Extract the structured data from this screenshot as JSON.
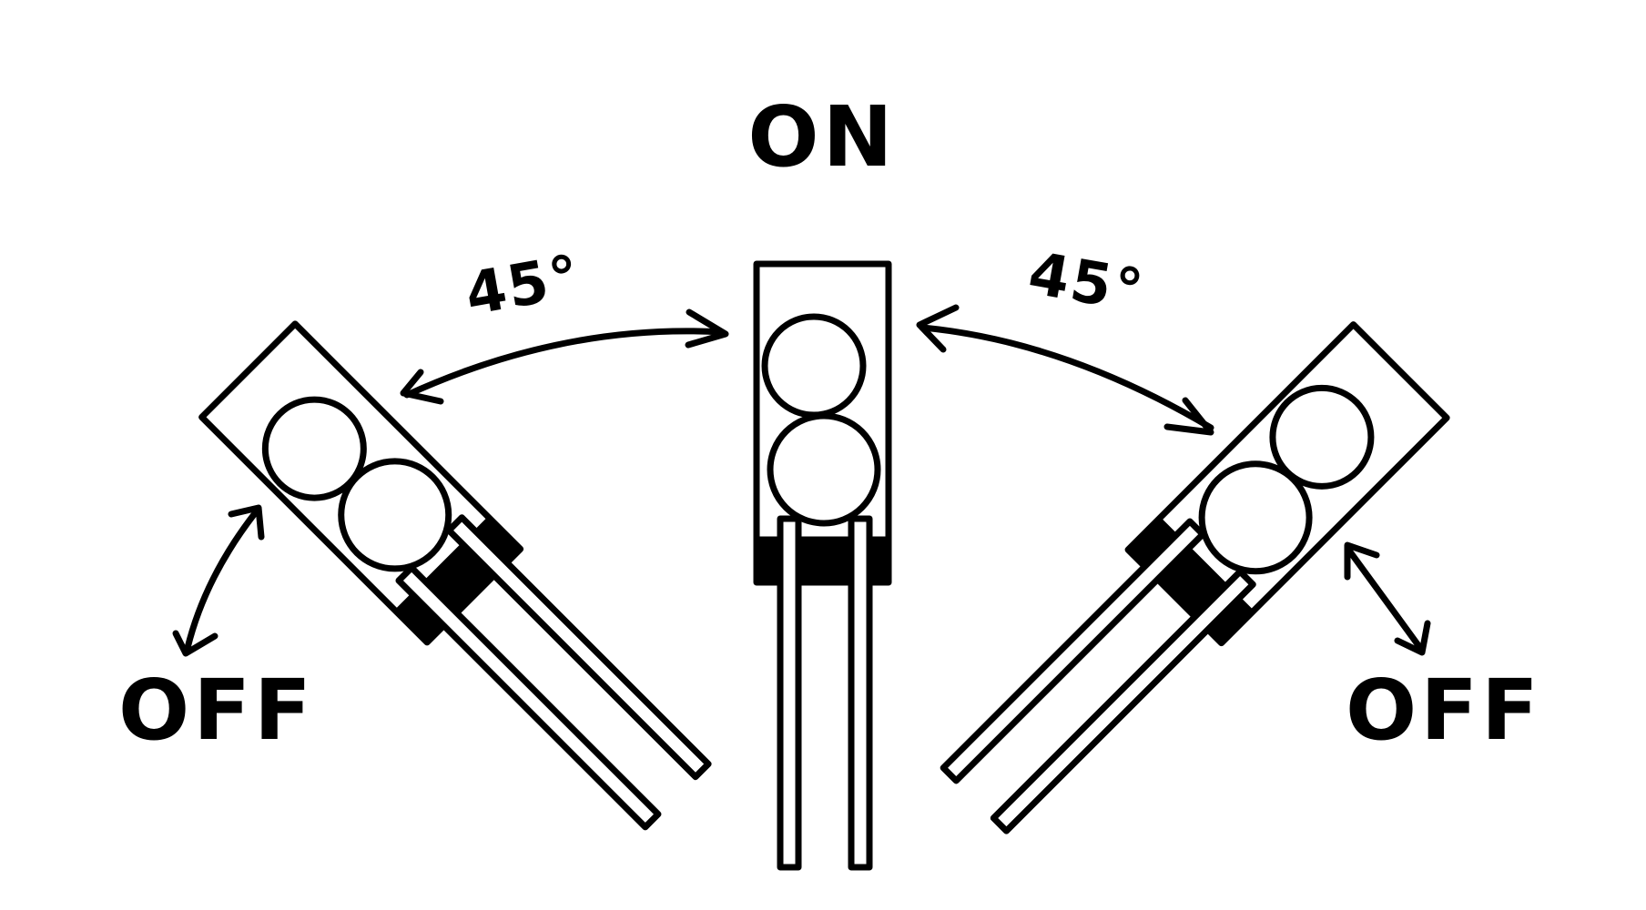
{
  "labels": {
    "on": "ON",
    "off_left": "OFF",
    "off_right": "OFF",
    "angle_left": "45°",
    "angle_right": "45°"
  },
  "colors": {
    "ink": "#000000",
    "background": "#ffffff"
  },
  "positions": [
    {
      "state": "OFF",
      "tilt_deg": -45
    },
    {
      "state": "ON",
      "tilt_deg": 0
    },
    {
      "state": "OFF",
      "tilt_deg": 45
    }
  ]
}
